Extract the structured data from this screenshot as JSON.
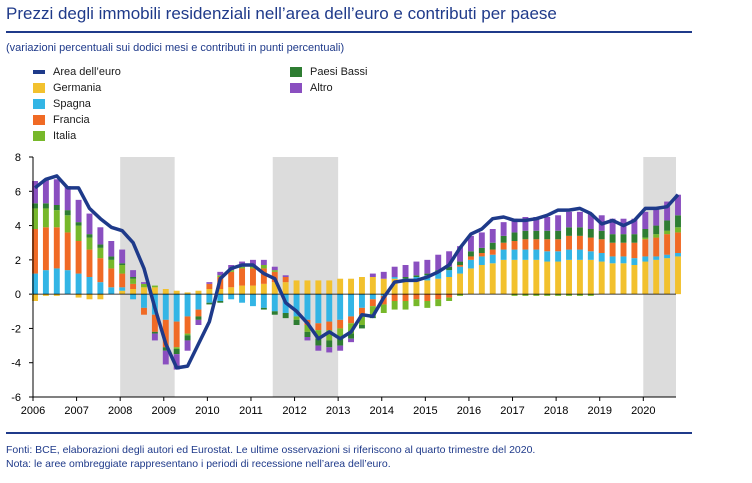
{
  "title": "Prezzi degli immobili residenziali nell’area dell’euro e contributi per paese",
  "subtitle": "(variazioni percentuali sui dodici mesi e contributi in punti percentuali)",
  "footer": {
    "source": "Fonti: BCE, elaborazioni degli autori ed Eurostat. Le ultime osservazioni si riferiscono al quarto trimestre del 2020.",
    "note": "Nota: le aree ombreggiate rappresentano i periodi di recessione nell’area dell’euro."
  },
  "colors": {
    "area": "#1e3a8a",
    "germania": "#f2c12e",
    "spagna": "#33b5e5",
    "francia": "#f06a25",
    "italia": "#77b82a",
    "paesi_bassi": "#2e7d32",
    "altro": "#8a4fc0",
    "recession": "#dcdcdc"
  },
  "chart_data": {
    "type": "bar",
    "stacked": true,
    "title": "Prezzi degli immobili residenziali nell’area dell’euro e contributi per paese",
    "xlabel": "",
    "ylabel": "",
    "ylim": [
      -6,
      8
    ],
    "yticks": [
      "8",
      "6",
      "4",
      "2",
      "0",
      "-2",
      "-4",
      "-6"
    ],
    "xticks": [
      "2006",
      "2007",
      "2008",
      "2009",
      "2010",
      "2011",
      "2012",
      "2013",
      "2014",
      "2015",
      "2016",
      "2017",
      "2018",
      "2019",
      "2020"
    ],
    "recessions": [
      [
        2008.0,
        2009.25
      ],
      [
        2011.5,
        2013.0
      ],
      [
        2020.0,
        2020.75
      ]
    ],
    "legend": [
      {
        "key": "area",
        "label": "Area dell’euro",
        "kind": "line"
      },
      {
        "key": "germania",
        "label": "Germania",
        "kind": "bar"
      },
      {
        "key": "spagna",
        "label": "Spagna",
        "kind": "bar"
      },
      {
        "key": "francia",
        "label": "Francia",
        "kind": "bar"
      },
      {
        "key": "italia",
        "label": "Italia",
        "kind": "bar"
      },
      {
        "key": "paesi_bassi",
        "label": "Paesi Bassi",
        "kind": "bar"
      },
      {
        "key": "altro",
        "label": "Altro",
        "kind": "bar"
      }
    ],
    "quarters": [
      "2006Q1",
      "2006Q2",
      "2006Q3",
      "2006Q4",
      "2007Q1",
      "2007Q2",
      "2007Q3",
      "2007Q4",
      "2008Q1",
      "2008Q2",
      "2008Q3",
      "2008Q4",
      "2009Q1",
      "2009Q2",
      "2009Q3",
      "2009Q4",
      "2010Q1",
      "2010Q2",
      "2010Q3",
      "2010Q4",
      "2011Q1",
      "2011Q2",
      "2011Q3",
      "2011Q4",
      "2012Q1",
      "2012Q2",
      "2012Q3",
      "2012Q4",
      "2013Q1",
      "2013Q2",
      "2013Q3",
      "2013Q4",
      "2014Q1",
      "2014Q2",
      "2014Q3",
      "2014Q4",
      "2015Q1",
      "2015Q2",
      "2015Q3",
      "2015Q4",
      "2016Q1",
      "2016Q2",
      "2016Q3",
      "2016Q4",
      "2017Q1",
      "2017Q2",
      "2017Q3",
      "2017Q4",
      "2018Q1",
      "2018Q2",
      "2018Q3",
      "2018Q4",
      "2019Q1",
      "2019Q2",
      "2019Q3",
      "2019Q4",
      "2020Q1",
      "2020Q2",
      "2020Q3",
      "2020Q4"
    ],
    "series": [
      {
        "key": "germania",
        "name": "Germania",
        "values": [
          -0.4,
          -0.1,
          -0.1,
          0.0,
          -0.2,
          -0.3,
          -0.3,
          0.0,
          0.2,
          0.3,
          0.4,
          0.4,
          0.3,
          0.2,
          0.1,
          0.2,
          0.3,
          0.3,
          0.4,
          0.5,
          0.5,
          0.6,
          0.7,
          0.7,
          0.8,
          0.8,
          0.8,
          0.8,
          0.9,
          0.9,
          1.0,
          1.0,
          0.9,
          0.9,
          0.8,
          0.8,
          0.8,
          0.9,
          1.0,
          1.2,
          1.5,
          1.7,
          1.8,
          2.0,
          2.0,
          2.0,
          2.0,
          1.9,
          1.9,
          2.0,
          2.0,
          2.0,
          1.9,
          1.8,
          1.8,
          1.7,
          1.9,
          2.0,
          2.1,
          2.2
        ]
      },
      {
        "key": "spagna",
        "name": "Spagna",
        "values": [
          1.2,
          1.4,
          1.5,
          1.4,
          1.2,
          1.0,
          0.7,
          0.4,
          0.2,
          -0.3,
          -0.8,
          -1.2,
          -1.5,
          -1.6,
          -1.3,
          -0.9,
          -0.5,
          -0.4,
          -0.3,
          -0.5,
          -0.7,
          -0.8,
          -1.0,
          -1.1,
          -1.3,
          -1.5,
          -1.7,
          -1.6,
          -1.5,
          -1.3,
          -0.8,
          -0.3,
          -0.1,
          0.1,
          0.1,
          0.2,
          0.3,
          0.4,
          0.4,
          0.4,
          0.5,
          0.5,
          0.5,
          0.6,
          0.6,
          0.6,
          0.6,
          0.6,
          0.6,
          0.6,
          0.6,
          0.5,
          0.5,
          0.4,
          0.4,
          0.4,
          0.3,
          0.2,
          0.2,
          0.2
        ]
      },
      {
        "key": "francia",
        "name": "Francia",
        "values": [
          2.6,
          2.5,
          2.4,
          2.2,
          1.9,
          1.6,
          1.4,
          1.1,
          0.8,
          0.3,
          -0.4,
          -1.0,
          -1.6,
          -1.5,
          -1.0,
          -0.4,
          0.3,
          0.7,
          0.9,
          1.0,
          1.0,
          0.9,
          0.6,
          0.3,
          0.0,
          -0.3,
          -0.4,
          -0.5,
          -0.5,
          -0.4,
          -0.4,
          -0.4,
          -0.5,
          -0.4,
          -0.4,
          -0.3,
          -0.4,
          -0.3,
          -0.2,
          0.1,
          0.2,
          0.2,
          0.3,
          0.4,
          0.5,
          0.6,
          0.6,
          0.7,
          0.7,
          0.8,
          0.8,
          0.8,
          0.8,
          0.8,
          0.8,
          0.9,
          1.0,
          1.1,
          1.2,
          1.2
        ]
      },
      {
        "key": "italia",
        "name": "Italia",
        "values": [
          1.2,
          1.1,
          1.0,
          1.0,
          0.9,
          0.7,
          0.6,
          0.5,
          0.5,
          0.3,
          0.2,
          0.1,
          0.0,
          -0.1,
          -0.1,
          0.0,
          0.0,
          0.1,
          0.1,
          0.1,
          0.2,
          0.2,
          0.1,
          0.0,
          -0.2,
          -0.4,
          -0.5,
          -0.6,
          -0.6,
          -0.6,
          -0.6,
          -0.6,
          -0.5,
          -0.5,
          -0.5,
          -0.4,
          -0.4,
          -0.4,
          -0.2,
          -0.1,
          0.0,
          0.0,
          0.0,
          0.0,
          -0.1,
          -0.1,
          -0.1,
          -0.1,
          -0.1,
          -0.1,
          -0.1,
          -0.1,
          0.0,
          0.0,
          0.0,
          0.0,
          0.1,
          0.2,
          0.2,
          0.3
        ]
      },
      {
        "key": "paesi_bassi",
        "name": "Paesi Bassi",
        "values": [
          0.3,
          0.3,
          0.3,
          0.3,
          0.2,
          0.2,
          0.2,
          0.2,
          0.1,
          0.1,
          0.0,
          -0.1,
          -0.2,
          -0.3,
          -0.3,
          -0.2,
          -0.1,
          -0.1,
          0.0,
          0.0,
          0.0,
          -0.1,
          -0.2,
          -0.3,
          -0.3,
          -0.3,
          -0.4,
          -0.4,
          -0.4,
          -0.3,
          -0.2,
          -0.1,
          0.0,
          0.0,
          0.1,
          0.1,
          0.1,
          0.1,
          0.2,
          0.2,
          0.3,
          0.3,
          0.4,
          0.4,
          0.5,
          0.5,
          0.5,
          0.5,
          0.5,
          0.5,
          0.5,
          0.5,
          0.5,
          0.5,
          0.5,
          0.5,
          0.5,
          0.5,
          0.6,
          0.7
        ]
      },
      {
        "key": "altro",
        "name": "Altro",
        "values": [
          1.3,
          1.4,
          1.5,
          1.4,
          1.3,
          1.2,
          1.0,
          0.9,
          0.8,
          0.4,
          0.1,
          -0.4,
          -0.8,
          -0.9,
          -0.6,
          -0.3,
          0.1,
          0.2,
          0.3,
          0.3,
          0.3,
          0.3,
          0.2,
          0.1,
          0.0,
          -0.2,
          -0.3,
          -0.3,
          -0.3,
          -0.2,
          0.0,
          0.2,
          0.4,
          0.6,
          0.7,
          0.8,
          0.8,
          0.9,
          0.9,
          0.9,
          0.9,
          0.9,
          0.8,
          0.8,
          0.8,
          0.8,
          0.8,
          0.8,
          0.9,
          0.9,
          0.9,
          0.9,
          0.9,
          0.9,
          0.9,
          0.9,
          1.0,
          1.0,
          1.1,
          1.2
        ]
      }
    ],
    "line": {
      "key": "area",
      "name": "Area dell’euro",
      "values": [
        6.2,
        6.7,
        6.9,
        6.2,
        6.2,
        5.0,
        4.4,
        3.9,
        3.7,
        3.0,
        1.5,
        -0.8,
        -2.9,
        -4.3,
        -4.2,
        -2.9,
        -1.6,
        0.9,
        1.5,
        1.7,
        1.7,
        1.2,
        0.9,
        -0.5,
        -1.0,
        -1.7,
        -2.6,
        -2.2,
        -2.6,
        -2.2,
        -1.2,
        -1.3,
        -0.2,
        0.7,
        0.8,
        0.8,
        1.0,
        1.3,
        1.7,
        2.7,
        3.5,
        3.8,
        4.4,
        4.5,
        4.3,
        4.3,
        4.4,
        4.6,
        4.9,
        4.9,
        5.0,
        4.7,
        4.1,
        4.3,
        4.0,
        4.3,
        5.0,
        5.0,
        5.1,
        5.8
      ]
    }
  }
}
